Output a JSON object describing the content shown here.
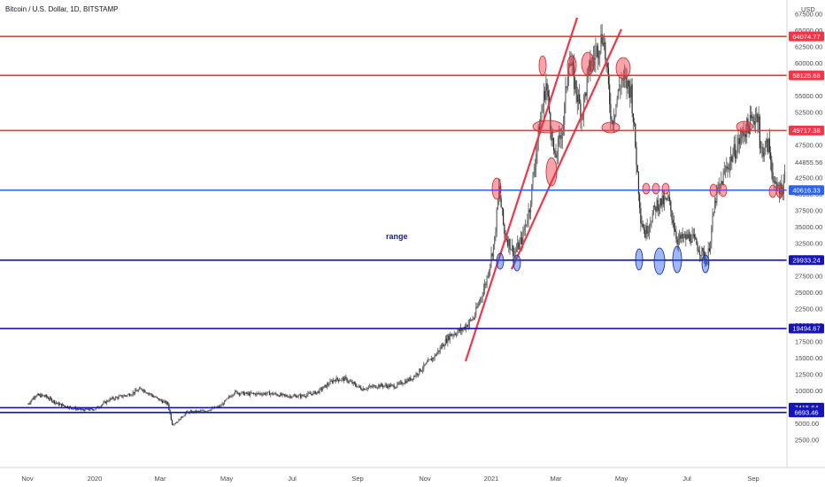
{
  "chart_data": {
    "type": "line",
    "title": "Bitcoin / U.S. Dollar, 1D, BITSTAMP",
    "currency_label": "USD",
    "xlabel": "",
    "ylabel": "",
    "y_scale": "linear",
    "ylim": [
      0,
      67500
    ],
    "grid": false,
    "x_ticks": [
      "Nov",
      "2020",
      "Mar",
      "May",
      "Jul",
      "Sep",
      "Nov",
      "2021",
      "Mar",
      "May",
      "Jul",
      "Sep"
    ],
    "y_ticks": [
      2500,
      5000,
      7500,
      10000,
      12500,
      15000,
      17500,
      20000,
      22500,
      25000,
      27500,
      30000,
      32500,
      35000,
      37500,
      40000,
      42500,
      47500,
      52500,
      55000,
      60000,
      62500,
      65000,
      67500
    ],
    "y_tick_labels": [
      "2500.00",
      "5000.00",
      "7500.00",
      "10000.00",
      "12500.00",
      "15000.00",
      "17500.00",
      "20000.00",
      "22500.00",
      "25000.00",
      "27500.00",
      "30000.00",
      "32500.00",
      "35000.00",
      "37500.00",
      "40000.00",
      "42500.00",
      "47500.00",
      "52500.00",
      "55000.00",
      "60000.00",
      "62500.00",
      "65000.00",
      "67500.00"
    ],
    "horizontal_levels": [
      {
        "value": 64074.77,
        "label": "64074.77",
        "color": "#f23645"
      },
      {
        "value": 58125.68,
        "label": "58125.68",
        "color": "#f23645"
      },
      {
        "value": 49717.38,
        "label": "49717.38",
        "color": "#f23645"
      },
      {
        "value": 40616.33,
        "label": "40616.33",
        "color": "#2962ff"
      },
      {
        "value": 29933.24,
        "label": "29933.24",
        "color": "#1414b8"
      },
      {
        "value": 19494.67,
        "label": "19494.67",
        "color": "#1414b8"
      },
      {
        "value": 7415.64,
        "label": "7415.64",
        "color": "#1414b8"
      },
      {
        "value": 6693.46,
        "label": "6693.46",
        "color": "#1414b8"
      }
    ],
    "current_price": {
      "value": 44855.56,
      "label": "44855.56"
    },
    "annotations": [
      {
        "text": "range"
      }
    ],
    "series": [
      {
        "color": "#555555",
        "x": [
          "2019-10-17",
          "2019-10-25",
          "2019-11-05",
          "2019-11-20",
          "2019-12-05",
          "2019-12-18",
          "2020-01-01",
          "2020-01-15",
          "2020-02-01",
          "2020-02-13",
          "2020-02-28",
          "2020-03-08",
          "2020-03-12",
          "2020-03-16",
          "2020-03-25",
          "2020-04-10",
          "2020-04-25",
          "2020-05-08",
          "2020-05-20",
          "2020-06-10",
          "2020-06-25",
          "2020-07-10",
          "2020-07-25",
          "2020-08-10",
          "2020-08-20",
          "2020-09-05",
          "2020-09-20",
          "2020-10-05",
          "2020-10-20",
          "2020-10-30",
          "2020-11-10",
          "2020-11-24",
          "2020-12-05",
          "2020-12-16",
          "2020-12-27",
          "2021-01-04",
          "2021-01-08",
          "2021-01-13",
          "2021-01-22",
          "2021-01-29",
          "2021-02-05",
          "2021-02-12",
          "2021-02-20",
          "2021-02-28",
          "2021-03-08",
          "2021-03-13",
          "2021-03-25",
          "2021-04-01",
          "2021-04-14",
          "2021-04-22",
          "2021-05-01",
          "2021-05-10",
          "2021-05-19",
          "2021-05-23",
          "2021-06-03",
          "2021-06-14",
          "2021-06-22",
          "2021-07-05",
          "2021-07-20",
          "2021-07-28",
          "2021-08-07",
          "2021-08-23",
          "2021-09-06",
          "2021-09-07",
          "2021-09-15",
          "2021-09-21",
          "2021-09-28",
          "2021-10-01"
        ],
        "y": [
          8000,
          9300,
          9200,
          8000,
          7400,
          7100,
          7200,
          8700,
          9400,
          10300,
          8700,
          8000,
          4900,
          5200,
          6700,
          6900,
          7600,
          9800,
          9500,
          9600,
          9200,
          9200,
          9800,
          11700,
          11800,
          10300,
          10800,
          10700,
          11900,
          13500,
          15300,
          18500,
          19300,
          21200,
          26500,
          33000,
          40800,
          34000,
          31000,
          33000,
          38000,
          48000,
          57000,
          45000,
          51000,
          61000,
          52000,
          59000,
          64500,
          51000,
          57500,
          56000,
          36500,
          34000,
          38500,
          39000,
          33000,
          33500,
          29800,
          39500,
          44000,
          49500,
          52500,
          46500,
          47500,
          40800,
          41000,
          43800
        ]
      }
    ]
  }
}
